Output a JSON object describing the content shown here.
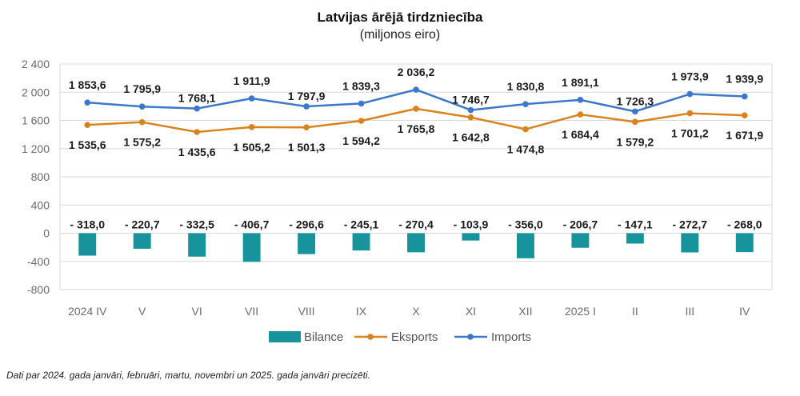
{
  "title": "Latvijas ārējā tirdzniecība",
  "subtitle": "(miljonos eiro)",
  "footnote": "Dati par 2024. gada janvāri, februāri, martu, novembri un 2025. gada janvāri precizēti.",
  "chart_data": {
    "type": "bar+line",
    "categories": [
      "2024 IV",
      "V",
      "VI",
      "VII",
      "VIII",
      "IX",
      "X",
      "XI",
      "XII",
      "2025 I",
      "II",
      "III",
      "IV"
    ],
    "ylim": [
      -800,
      2400
    ],
    "yticks": [
      -800,
      -400,
      0,
      400,
      800,
      1200,
      1600,
      2000,
      2400
    ],
    "ytick_labels": [
      "-800",
      "-400",
      "0",
      "400",
      "800",
      "1 200",
      "1 600",
      "2 000",
      "2 400"
    ],
    "grid": true,
    "legend_position": "bottom",
    "series": [
      {
        "name": "Bilance",
        "kind": "bar",
        "color": "#17939b",
        "values": [
          -318.0,
          -220.7,
          -332.5,
          -406.7,
          -296.6,
          -245.1,
          -270.4,
          -103.9,
          -356.0,
          -206.7,
          -147.1,
          -272.7,
          -268.0
        ],
        "labels": [
          "- 318,0",
          "- 220,7",
          "- 332,5",
          "- 406,7",
          "- 296,6",
          "- 245,1",
          "- 270,4",
          "- 103,9",
          "- 356,0",
          "- 206,7",
          "- 147,1",
          "- 272,7",
          "- 268,0"
        ]
      },
      {
        "name": "Eksports",
        "kind": "line",
        "color": "#d9831f",
        "values": [
          1535.6,
          1575.2,
          1435.6,
          1505.2,
          1501.3,
          1594.2,
          1765.8,
          1642.8,
          1474.8,
          1684.4,
          1579.2,
          1701.2,
          1671.9
        ],
        "labels": [
          "1 535,6",
          "1 575,2",
          "1 435,6",
          "1 505,2",
          "1 501,3",
          "1 594,2",
          "1 765,8",
          "1 642,8",
          "1 474,8",
          "1 684,4",
          "1 579,2",
          "1 701,2",
          "1 671,9"
        ]
      },
      {
        "name": "Imports",
        "kind": "line",
        "color": "#3b78c9",
        "values": [
          1853.6,
          1795.9,
          1768.1,
          1911.9,
          1797.9,
          1839.3,
          2036.2,
          1746.7,
          1830.8,
          1891.1,
          1726.3,
          1973.9,
          1939.9
        ],
        "labels": [
          "1 853,6",
          "1 795,9",
          "1 768,1",
          "1 911,9",
          "1 797,9",
          "1 839,3",
          "2 036,2",
          "1 746,7",
          "1 830,8",
          "1 891,1",
          "1 726,3",
          "1 973,9",
          "1 939,9"
        ]
      }
    ]
  }
}
